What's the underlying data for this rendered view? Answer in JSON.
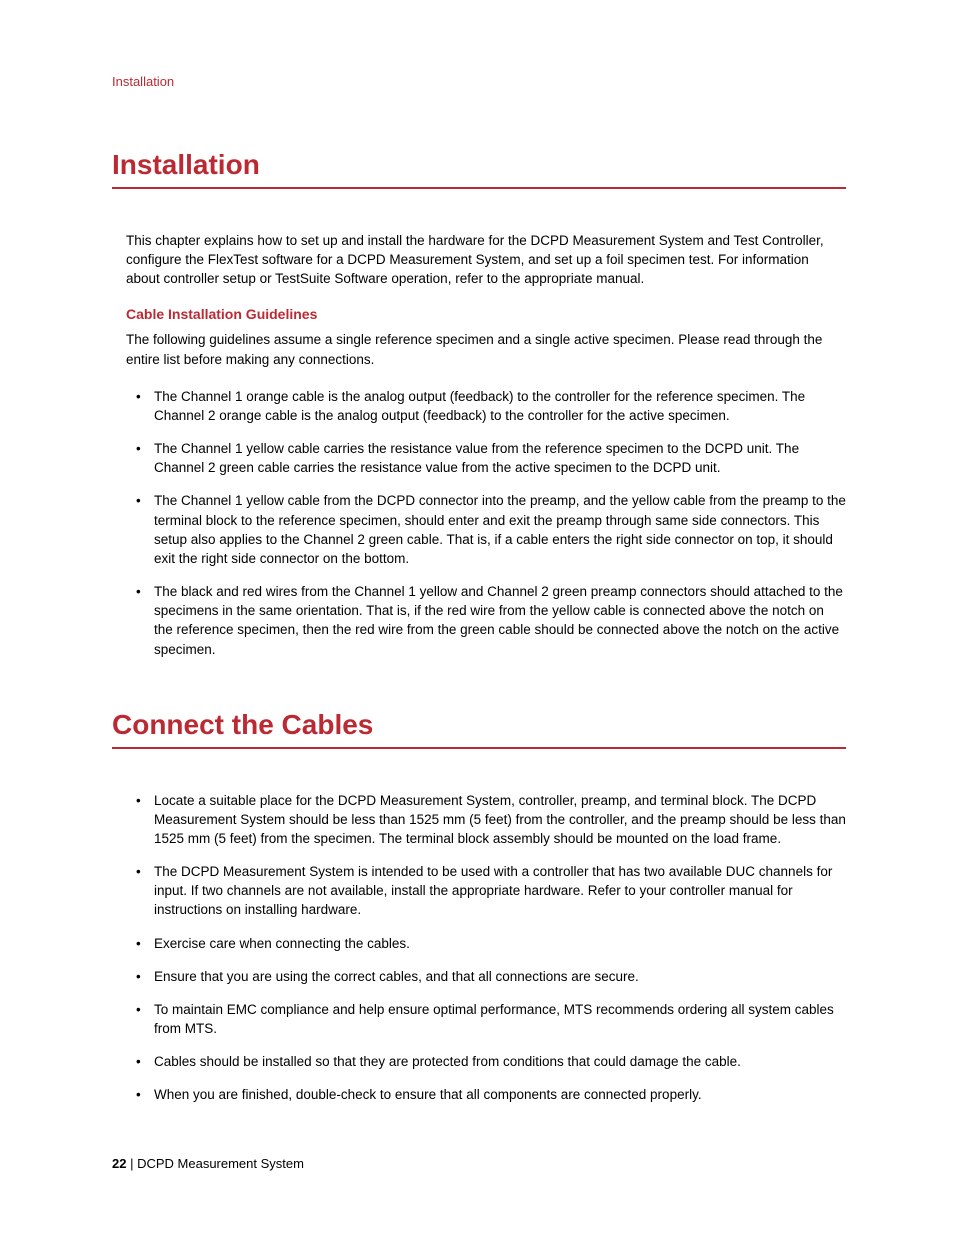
{
  "colors": {
    "accent": "#bb2a33",
    "text": "#000000",
    "background": "#ffffff",
    "rule": "#bb2a33"
  },
  "typography": {
    "body_fontsize_pt": 10,
    "h1_fontsize_pt": 21,
    "subheading_fontsize_pt": 10.5,
    "font_family": "Arial, Helvetica, sans-serif"
  },
  "running_header": "Installation",
  "section1": {
    "title": "Installation",
    "intro": "This chapter explains how to set up and install the hardware for the DCPD Measurement System and Test Controller, configure the FlexTest software for a DCPD Measurement System, and set up a foil specimen test. For information about controller setup or TestSuite Software operation, refer to the appropriate manual.",
    "sub_heading": "Cable Installation Guidelines",
    "sub_intro": "The following guidelines assume a single reference specimen and a single active specimen. Please read through the entire list before making any connections.",
    "bullets": [
      "The Channel 1 orange cable is the analog output (feedback) to the controller for the reference specimen. The Channel 2 orange cable is the analog output (feedback) to the controller for the active specimen.",
      "The Channel 1 yellow cable carries the resistance value from the reference specimen to the DCPD unit. The Channel 2 green cable carries the resistance value from the active specimen to the DCPD unit.",
      "The Channel 1 yellow cable from the DCPD connector into the preamp, and the yellow cable from the preamp to the terminal block to the reference specimen, should enter and exit the preamp through same side connectors. This setup also applies to the Channel 2 green cable. That is, if a cable enters the right side connector on top, it should exit the right side connector on the bottom.",
      "The black and red wires from the Channel 1 yellow and Channel 2 green preamp connectors should attached to the specimens in the same orientation. That is, if the red wire from the yellow cable is connected above the notch on the reference specimen, then the red wire from the green cable should be connected above the notch on the active specimen."
    ]
  },
  "section2": {
    "title": "Connect the Cables",
    "bullets": [
      "Locate a suitable place for the DCPD Measurement System, controller, preamp, and terminal block. The DCPD Measurement System should be less than 1525 mm (5 feet) from the controller, and the preamp should be less than 1525 mm (5 feet) from the specimen. The terminal block assembly should be mounted on the load frame.",
      "The DCPD Measurement System is intended to be used with a controller that has two available DUC channels for input. If two channels are not available, install the appropriate hardware. Refer to your controller manual for instructions on installing hardware.",
      "Exercise care when connecting the cables.",
      "Ensure that you are using the correct cables, and that all connections are secure.",
      "To maintain EMC compliance and help ensure optimal performance, MTS recommends ordering all system cables from MTS.",
      "Cables should be installed so that they are protected from conditions that could damage the cable.",
      "When you are finished, double-check to ensure that all components are connected properly."
    ]
  },
  "footer": {
    "page_number": "22",
    "separator": " | ",
    "doc_title": "DCPD Measurement System"
  }
}
